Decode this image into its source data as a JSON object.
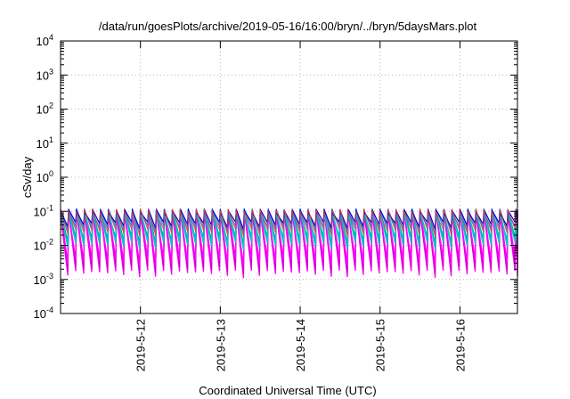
{
  "chart_data": {
    "type": "line",
    "title": "/data/run/goesPlots/archive/2019-05-16/16:00/bryn/../bryn/5daysMars.plot",
    "xlabel": "Coordinated Universal Time (UTC)",
    "ylabel": "cSv/day",
    "yscale": "log",
    "ylim_exponents": [
      -4,
      4
    ],
    "y_tick_base": "10",
    "y_tick_exponents": [
      "-4",
      "-3",
      "-2",
      "-1",
      "0",
      "1",
      "2",
      "3",
      "4"
    ],
    "x_tick_labels": [
      "2019-5-12",
      "2019-5-13",
      "2019-5-14",
      "2019-5-15",
      "2019-5-16"
    ],
    "xlim_days": [
      11.0,
      16.72
    ],
    "x_tick_days": [
      12,
      13,
      14,
      15,
      16
    ],
    "grid": true,
    "sawtooth_period_days": 0.1,
    "series_colors": [
      "#ff00ff",
      "#cc00cc",
      "#00aaaa",
      "#00cccc",
      "#2e8b57",
      "#1e90ff",
      "#0000cd",
      "#ff3030"
    ],
    "peak_level": 0.1,
    "trough_levels": {
      "magenta": 0.0015,
      "cyan": 0.01,
      "blue": 0.03
    }
  }
}
